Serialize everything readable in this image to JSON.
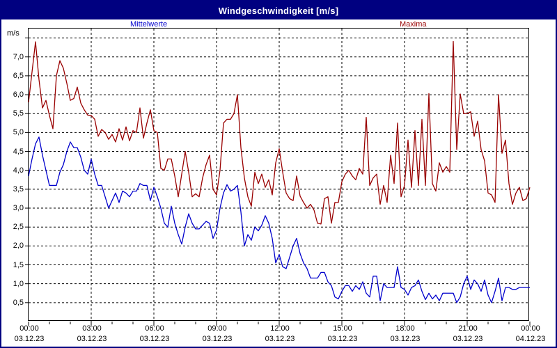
{
  "title": "Windgeschwindigkeit [m/s]",
  "unit_label": "m/s",
  "legend": {
    "mean": "Mittelwerte",
    "max": "Maxima"
  },
  "colors": {
    "title_bar": "#000080",
    "window_border": "#000080",
    "mean_line": "#0000cc",
    "max_line": "#990000",
    "grid": "#000000",
    "background": "#ffffff"
  },
  "chart_data": {
    "type": "line",
    "title": "Windgeschwindigkeit [m/s]",
    "ylabel": "m/s",
    "grid": "dashed",
    "legend_position": "top",
    "x_axis": {
      "start_hour": 0,
      "end_hour": 24,
      "minor_tick_every_hours": 1,
      "major_tick_every_hours": 3,
      "ticks": [
        {
          "h": 0,
          "time": "00:00",
          "date": "03.12.23"
        },
        {
          "h": 3,
          "time": "03:00",
          "date": "03.12.23"
        },
        {
          "h": 6,
          "time": "06:00",
          "date": "03.12.23"
        },
        {
          "h": 9,
          "time": "09:00",
          "date": "03.12.23"
        },
        {
          "h": 12,
          "time": "12:00",
          "date": "03.12.23"
        },
        {
          "h": 15,
          "time": "15:00",
          "date": "03.12.23"
        },
        {
          "h": 18,
          "time": "18:00",
          "date": "03.12.23"
        },
        {
          "h": 21,
          "time": "21:00",
          "date": "03.12.23"
        },
        {
          "h": 24,
          "time": "00:00",
          "date": "04.12.23"
        }
      ]
    },
    "y_axis": {
      "min": 0,
      "max": 7.75,
      "grid_values": [
        0.5,
        1.0,
        1.5,
        2.0,
        2.5,
        3.0,
        3.5,
        4.0,
        4.5,
        5.0,
        5.5,
        6.0,
        6.5,
        7.0,
        7.5
      ],
      "ticks": [
        {
          "v": 0.5,
          "label": "0,5"
        },
        {
          "v": 1.0,
          "label": "1,0"
        },
        {
          "v": 1.5,
          "label": "1,5"
        },
        {
          "v": 2.0,
          "label": "2,0"
        },
        {
          "v": 2.5,
          "label": "2,5"
        },
        {
          "v": 3.0,
          "label": "3,0"
        },
        {
          "v": 3.5,
          "label": "3,5"
        },
        {
          "v": 4.0,
          "label": "4,0"
        },
        {
          "v": 4.5,
          "label": "4,5"
        },
        {
          "v": 5.0,
          "label": "5,0"
        },
        {
          "v": 5.5,
          "label": "5,5"
        },
        {
          "v": 6.0,
          "label": "6,0"
        },
        {
          "v": 6.5,
          "label": "6,5"
        },
        {
          "v": 7.0,
          "label": "7,0"
        }
      ]
    },
    "series": [
      {
        "name": "Mittelwerte",
        "color": "#0000cc",
        "t_start_min": 0,
        "t_step_min": 10,
        "values": [
          3.85,
          4.3,
          4.7,
          4.88,
          4.4,
          4.0,
          3.6,
          3.6,
          3.6,
          3.95,
          4.15,
          4.5,
          4.75,
          4.6,
          4.6,
          4.35,
          4.0,
          3.9,
          4.3,
          3.9,
          3.6,
          3.6,
          3.3,
          3.0,
          3.2,
          3.4,
          3.15,
          3.45,
          3.4,
          3.3,
          3.45,
          3.45,
          3.65,
          3.6,
          3.6,
          3.2,
          3.55,
          3.3,
          3.0,
          2.6,
          2.5,
          3.05,
          2.6,
          2.3,
          2.05,
          2.5,
          2.85,
          2.6,
          2.45,
          2.45,
          2.55,
          2.65,
          2.6,
          2.2,
          2.42,
          3.0,
          3.4,
          3.62,
          3.45,
          3.5,
          3.6,
          2.9,
          2.0,
          2.3,
          2.15,
          2.5,
          2.4,
          2.55,
          2.8,
          2.6,
          2.2,
          1.55,
          1.77,
          1.45,
          1.4,
          1.7,
          2.0,
          2.2,
          1.8,
          1.55,
          1.4,
          1.15,
          1.15,
          1.15,
          1.3,
          1.3,
          1.05,
          0.95,
          0.65,
          0.6,
          0.8,
          0.95,
          0.95,
          0.8,
          0.95,
          0.85,
          1.05,
          0.75,
          0.65,
          1.2,
          1.2,
          0.55,
          1.0,
          0.9,
          0.9,
          0.9,
          1.45,
          0.9,
          0.85,
          0.7,
          0.9,
          0.95,
          1.1,
          0.8,
          0.58,
          0.75,
          0.6,
          0.7,
          0.55,
          0.75,
          0.75,
          0.75,
          0.75,
          0.5,
          0.65,
          1.0,
          1.2,
          0.85,
          1.1,
          1.0,
          0.8,
          1.1,
          0.7,
          0.5,
          0.8,
          1.15,
          0.55,
          0.9,
          0.9,
          0.85,
          0.85,
          0.9,
          0.9,
          0.9,
          0.9
        ]
      },
      {
        "name": "Maxima",
        "color": "#990000",
        "t_start_min": 0,
        "t_step_min": 10,
        "values": [
          5.8,
          6.6,
          7.4,
          6.4,
          5.65,
          5.85,
          5.45,
          5.1,
          6.5,
          6.9,
          6.7,
          6.3,
          5.85,
          5.9,
          6.2,
          5.78,
          5.6,
          5.46,
          5.45,
          5.35,
          4.9,
          5.08,
          5.0,
          4.82,
          4.95,
          4.75,
          5.1,
          4.8,
          5.15,
          4.78,
          5.05,
          5.0,
          5.65,
          4.85,
          5.25,
          5.6,
          5.05,
          5.0,
          4.05,
          4.0,
          4.3,
          4.3,
          3.85,
          3.3,
          3.9,
          4.5,
          3.95,
          3.3,
          3.38,
          3.3,
          3.8,
          4.15,
          4.4,
          3.5,
          3.35,
          4.0,
          5.25,
          5.35,
          5.35,
          5.5,
          6.0,
          4.6,
          3.8,
          3.3,
          3.05,
          3.95,
          3.65,
          3.9,
          3.55,
          3.75,
          3.35,
          4.2,
          4.57,
          3.95,
          3.4,
          3.25,
          3.2,
          3.85,
          3.32,
          3.15,
          3.0,
          3.1,
          2.95,
          2.6,
          2.58,
          3.25,
          3.3,
          2.6,
          3.15,
          3.15,
          3.7,
          3.9,
          4.0,
          3.85,
          3.75,
          4.05,
          3.9,
          5.4,
          3.6,
          3.8,
          3.9,
          3.1,
          3.6,
          3.15,
          4.4,
          3.65,
          5.25,
          3.3,
          3.6,
          4.8,
          3.55,
          5.05,
          3.6,
          5.35,
          3.6,
          6.03,
          3.65,
          3.45,
          4.2,
          3.95,
          4.1,
          3.95,
          7.41,
          4.55,
          6.02,
          5.5,
          5.5,
          5.55,
          4.9,
          5.3,
          4.55,
          4.25,
          3.4,
          3.35,
          3.15,
          6.0,
          4.45,
          4.8,
          3.65,
          3.1,
          3.4,
          3.55,
          3.2,
          3.25,
          3.55
        ]
      }
    ]
  }
}
